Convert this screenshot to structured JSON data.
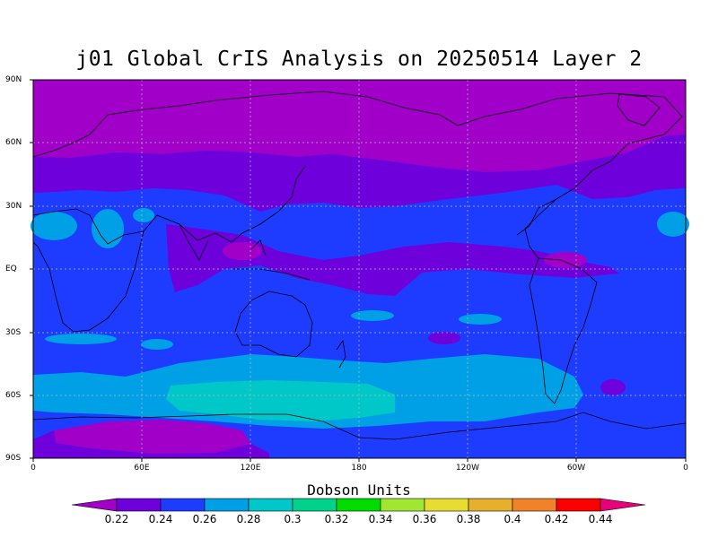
{
  "title": "j01 Global CrIS Analysis on 20250514 Layer 2",
  "lat_labels": [
    "90N",
    "60N",
    "30N",
    "EQ",
    "30S",
    "60S",
    "90S"
  ],
  "lon_labels": [
    "0",
    "60E",
    "120E",
    "180",
    "120W",
    "60W",
    "0"
  ],
  "colorbar": {
    "title": "Dobson Units",
    "labels": [
      "0.22",
      "0.24",
      "0.26",
      "0.28",
      "0.3",
      "0.32",
      "0.34",
      "0.36",
      "0.38",
      "0.4",
      "0.42",
      "0.44"
    ],
    "colors": [
      "#a000c8",
      "#6e00dc",
      "#1e3cff",
      "#00a0e6",
      "#00c8c8",
      "#00d28c",
      "#00dc00",
      "#a0e632",
      "#e6dc32",
      "#e6af2d",
      "#f08228",
      "#fa0000",
      "#e6007a"
    ]
  },
  "field_colors": {
    "lt_022": "#a000c8",
    "c_022_024": "#6e00dc",
    "c_024_026": "#1e3cff",
    "c_026_028": "#00a0e6",
    "c_028_030": "#00c8c8"
  }
}
